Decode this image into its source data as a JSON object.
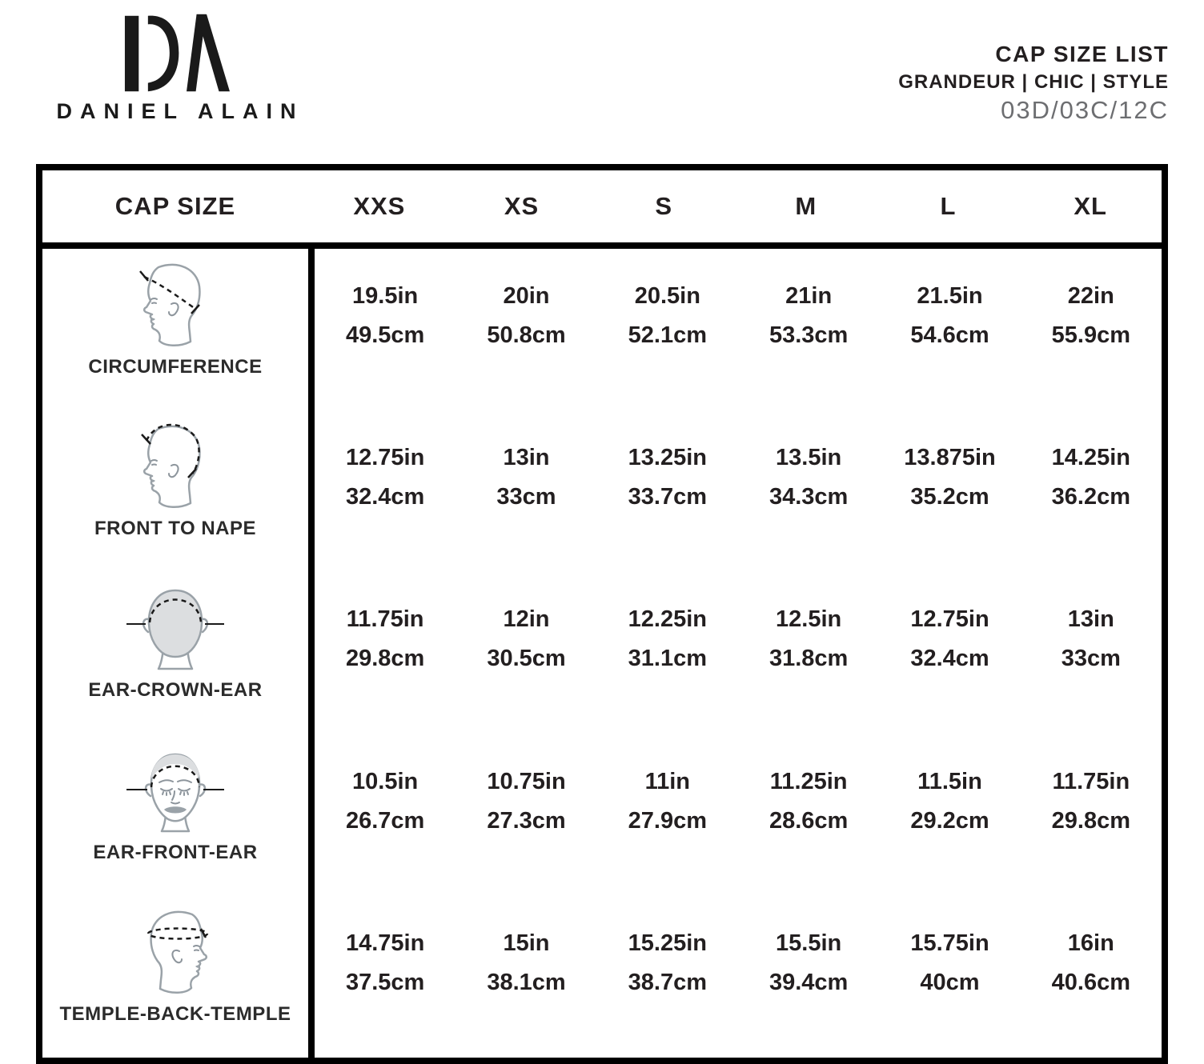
{
  "brand": {
    "monogram": "DA",
    "name": "DANIEL ALAIN"
  },
  "doc_header": {
    "title": "CAP SIZE LIST",
    "subtitle": "GRANDEUR | CHIC | STYLE",
    "code": "03D/03C/12C"
  },
  "colors": {
    "text": "#231f20",
    "muted_gray": "#6d6e71",
    "border_black": "#000000",
    "icon_fill": "#dcdee0",
    "icon_stroke": "#9aa2a8",
    "dash_line": "#1a1a1a"
  },
  "table": {
    "columns": [
      "CAP SIZE",
      "XXS",
      "XS",
      "S",
      "M",
      "L",
      "XL"
    ],
    "rows": [
      {
        "label": "CIRCUMFERENCE",
        "icon": "circumference-head-icon",
        "values": [
          {
            "in": "19.5in",
            "cm": "49.5cm"
          },
          {
            "in": "20in",
            "cm": "50.8cm"
          },
          {
            "in": "20.5in",
            "cm": "52.1cm"
          },
          {
            "in": "21in",
            "cm": "53.3cm"
          },
          {
            "in": "21.5in",
            "cm": "54.6cm"
          },
          {
            "in": "22in",
            "cm": "55.9cm"
          }
        ]
      },
      {
        "label": "FRONT TO NAPE",
        "icon": "front-to-nape-head-icon",
        "values": [
          {
            "in": "12.75in",
            "cm": "32.4cm"
          },
          {
            "in": "13in",
            "cm": "33cm"
          },
          {
            "in": "13.25in",
            "cm": "33.7cm"
          },
          {
            "in": "13.5in",
            "cm": "34.3cm"
          },
          {
            "in": "13.875in",
            "cm": "35.2cm"
          },
          {
            "in": "14.25in",
            "cm": "36.2cm"
          }
        ]
      },
      {
        "label": "EAR-CROWN-EAR",
        "icon": "ear-crown-ear-head-icon",
        "values": [
          {
            "in": "11.75in",
            "cm": "29.8cm"
          },
          {
            "in": "12in",
            "cm": "30.5cm"
          },
          {
            "in": "12.25in",
            "cm": "31.1cm"
          },
          {
            "in": "12.5in",
            "cm": "31.8cm"
          },
          {
            "in": "12.75in",
            "cm": "32.4cm"
          },
          {
            "in": "13in",
            "cm": "33cm"
          }
        ]
      },
      {
        "label": "EAR-FRONT-EAR",
        "icon": "ear-front-ear-head-icon",
        "values": [
          {
            "in": "10.5in",
            "cm": "26.7cm"
          },
          {
            "in": "10.75in",
            "cm": "27.3cm"
          },
          {
            "in": "11in",
            "cm": "27.9cm"
          },
          {
            "in": "11.25in",
            "cm": "28.6cm"
          },
          {
            "in": "11.5in",
            "cm": "29.2cm"
          },
          {
            "in": "11.75in",
            "cm": "29.8cm"
          }
        ]
      },
      {
        "label": "TEMPLE-BACK-TEMPLE",
        "icon": "temple-back-temple-head-icon",
        "values": [
          {
            "in": "14.75in",
            "cm": "37.5cm"
          },
          {
            "in": "15in",
            "cm": "38.1cm"
          },
          {
            "in": "15.25in",
            "cm": "38.7cm"
          },
          {
            "in": "15.5in",
            "cm": "39.4cm"
          },
          {
            "in": "15.75in",
            "cm": "40cm"
          },
          {
            "in": "16in",
            "cm": "40.6cm"
          }
        ]
      }
    ]
  }
}
